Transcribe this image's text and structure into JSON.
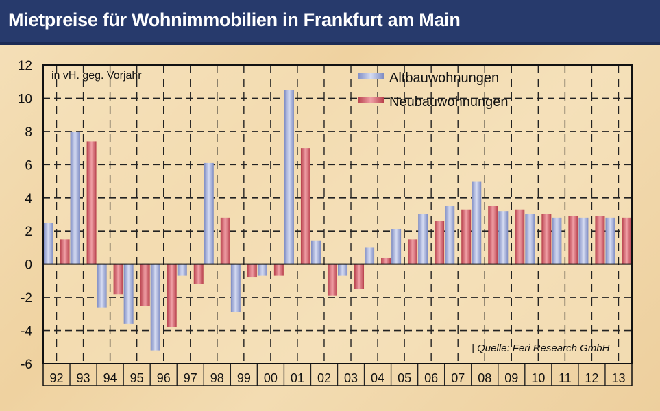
{
  "title": "Mietpreise für Wohnimmobilien in Frankfurt am Main",
  "chart_data": {
    "type": "bar",
    "unit_label": "in vH. geg. Vorjahr",
    "source": "| Quelle: Feri Research GmbH",
    "categories": [
      "92",
      "93",
      "94",
      "95",
      "96",
      "97",
      "98",
      "99",
      "00",
      "01",
      "02",
      "03",
      "04",
      "05",
      "06",
      "07",
      "08",
      "09",
      "10",
      "11",
      "12",
      "13"
    ],
    "series": [
      {
        "name": "Altbauwohnungen",
        "color": "#9aa6d2",
        "values": [
          2.5,
          8.0,
          -2.6,
          -3.6,
          -5.2,
          -0.7,
          6.1,
          -2.9,
          -0.7,
          10.5,
          1.4,
          -0.7,
          1.0,
          2.1,
          3.0,
          3.5,
          5.0,
          3.2,
          3.0,
          2.8,
          2.8,
          2.8
        ]
      },
      {
        "name": "Neubauwohnungen",
        "color": "#d25f6b",
        "values": [
          1.5,
          7.4,
          -1.8,
          -2.5,
          -3.8,
          -1.2,
          2.8,
          -0.8,
          -0.7,
          7.0,
          -1.9,
          -1.5,
          0.4,
          1.5,
          2.6,
          3.3,
          3.5,
          3.3,
          3.0,
          2.9,
          2.9,
          2.8
        ]
      }
    ],
    "ylim": [
      -6,
      12
    ],
    "yticks": [
      12,
      10,
      8,
      6,
      4,
      2,
      0,
      -2,
      -4,
      -6
    ],
    "grid": true,
    "legend": "top-right"
  }
}
